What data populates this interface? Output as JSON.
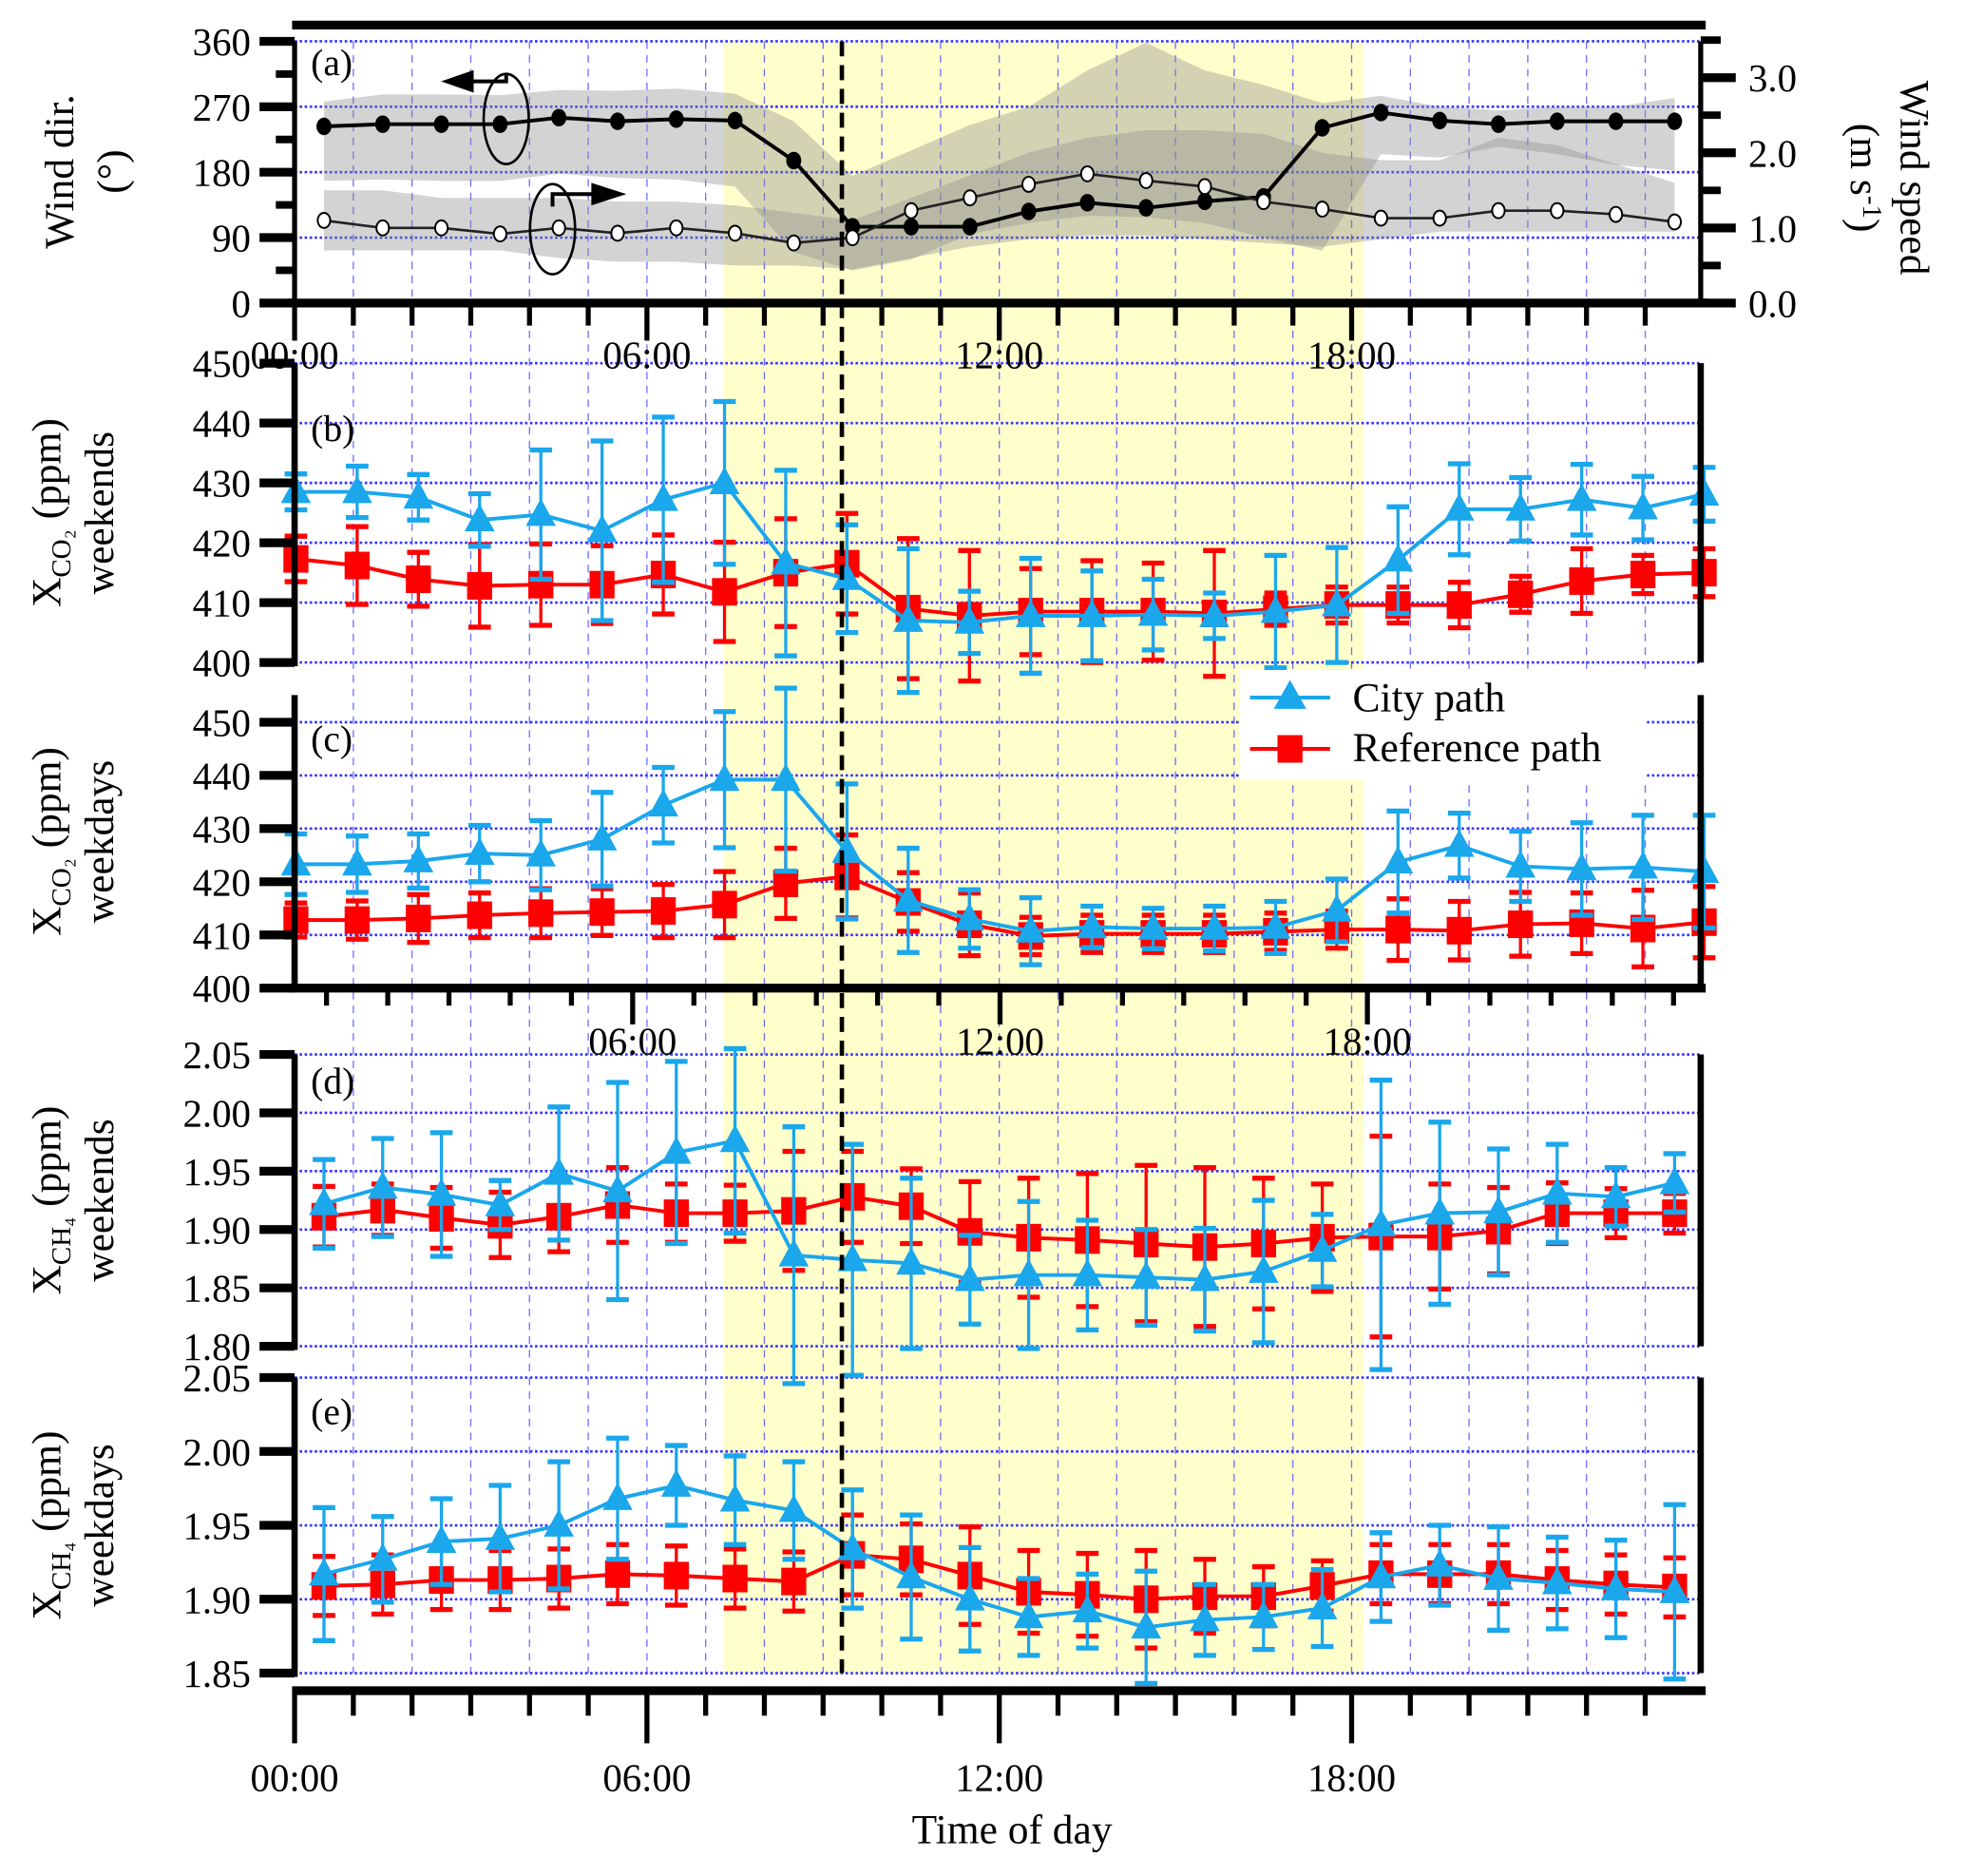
{
  "figure": {
    "x_axis_title": "Time of day",
    "x_tick_labels": [
      "00:00",
      "06:00",
      "12:00",
      "18:00"
    ],
    "mid_x_tick_labels": [
      "06:00",
      "12:00",
      "18:00"
    ],
    "highlight_band_hours": [
      7.3,
      18.2
    ],
    "dashed_line_hour": 9,
    "colors": {
      "city": "#1aa7ec",
      "reference": "#ff0000",
      "highlight": "#ffffcc",
      "grid": "#3333ff",
      "band": "#8c8c8c"
    },
    "legend": {
      "city_label": "City path",
      "reference_label": "Reference path",
      "placement": "upper-right of panel (c)"
    }
  },
  "chart_data": [
    {
      "panel": "(a)",
      "type": "line",
      "ylabel_left": "Wind dir.",
      "ylabel_left_unit": "(°)",
      "ylabel_right": "Wind speed",
      "ylabel_right_unit": "(m s",
      "ylabel_right_sup": "-1",
      "ylabel_right_close": ")",
      "ylim_left": [
        0,
        360
      ],
      "yticks_left": [
        "0",
        "90",
        "180",
        "270",
        "360"
      ],
      "ylim_right": [
        0,
        3.5
      ],
      "yticks_right": [
        "0.0",
        "1.0",
        "2.0",
        "3.0"
      ],
      "x_hours": [
        0.5,
        1.5,
        2.5,
        3.5,
        4.5,
        5.5,
        6.5,
        7.5,
        8.5,
        9.5,
        10.5,
        11.5,
        12.5,
        13.5,
        14.5,
        15.5,
        16.5,
        17.5,
        18.5,
        19.5,
        20.5,
        21.5,
        22.5,
        23.5
      ],
      "wind_direction": [
        243,
        246,
        246,
        246,
        255,
        250,
        253,
        251,
        196,
        105,
        105,
        105,
        126,
        138,
        131,
        140,
        146,
        241,
        262,
        251,
        246,
        250,
        250,
        250
      ],
      "wind_direction_band_upper": [
        277,
        287,
        287,
        286,
        293,
        292,
        295,
        288,
        250,
        175,
        210,
        245,
        270,
        320,
        358,
        320,
        300,
        275,
        285,
        270,
        265,
        270,
        270,
        282
      ],
      "wind_direction_band_lower": [
        168,
        170,
        168,
        168,
        178,
        172,
        170,
        160,
        70,
        45,
        60,
        95,
        110,
        120,
        118,
        110,
        90,
        72,
        205,
        200,
        215,
        205,
        190,
        182
      ],
      "wind_speed": [
        1.1,
        1.0,
        1.0,
        0.92,
        1.0,
        0.93,
        1.0,
        0.93,
        0.8,
        0.87,
        1.23,
        1.4,
        1.58,
        1.72,
        1.63,
        1.55,
        1.35,
        1.25,
        1.13,
        1.13,
        1.23,
        1.23,
        1.18,
        1.08
      ],
      "wind_speed_band_upper": [
        1.5,
        1.5,
        1.4,
        1.4,
        1.4,
        1.35,
        1.35,
        1.3,
        1.2,
        1.1,
        1.4,
        1.7,
        2.0,
        2.2,
        2.3,
        2.3,
        2.25,
        2.0,
        1.9,
        1.9,
        2.2,
        2.1,
        1.85,
        1.6
      ],
      "wind_speed_band_lower": [
        0.7,
        0.7,
        0.7,
        0.7,
        0.6,
        0.55,
        0.55,
        0.5,
        0.5,
        0.45,
        0.6,
        0.75,
        0.85,
        0.9,
        0.9,
        0.85,
        0.8,
        0.75,
        0.85,
        0.95,
        0.95,
        0.95,
        0.95,
        0.95
      ]
    },
    {
      "panel": "(b)",
      "type": "line",
      "ylabel_main": "X",
      "ylabel_sub": "CO₂",
      "ylabel_unit": " (ppm)",
      "ylabel_line2": "weekends",
      "ylim": [
        400,
        450
      ],
      "yticks": [
        "400",
        "410",
        "420",
        "430",
        "440",
        "450"
      ],
      "series": [
        {
          "name": "City path",
          "values": [
            428.5,
            428.5,
            427.6,
            423.8,
            424.7,
            422,
            427.2,
            430,
            416.6,
            414,
            407,
            406.7,
            407.8,
            407.8,
            408,
            407.8,
            408.5,
            409.6,
            417.1,
            425.6,
            425.6,
            427.2,
            425.8,
            428.1
          ],
          "error": [
            3,
            4.3,
            3.8,
            4.4,
            10.8,
            15,
            13.8,
            13.6,
            15.5,
            9,
            12,
            5.2,
            9.6,
            7.5,
            5.9,
            3.8,
            9.4,
            9.6,
            8.9,
            7.6,
            5.3,
            5.9,
            5.3,
            4.5
          ]
        },
        {
          "name": "Reference path",
          "values": [
            417.3,
            416.2,
            413.9,
            412.8,
            413,
            413,
            414.7,
            411.8,
            415,
            416.5,
            409,
            407.8,
            408.5,
            408.5,
            408.5,
            408.2,
            408.9,
            409.6,
            409.6,
            409.6,
            411.4,
            413.6,
            414.7,
            415
          ],
          "error": [
            3.8,
            6.5,
            4.5,
            6.9,
            6.8,
            6.5,
            6.6,
            8.3,
            9,
            8.4,
            11.7,
            10.9,
            7.2,
            8.5,
            8.1,
            10.5,
            2.7,
            3,
            3,
            3.8,
            3,
            5.4,
            3.2,
            4
          ]
        }
      ]
    },
    {
      "panel": "(c)",
      "type": "line",
      "ylabel_main": "X",
      "ylabel_sub": "CO₂",
      "ylabel_unit": " (ppm)",
      "ylabel_line2": "weekdays",
      "ylim": [
        400,
        455
      ],
      "yticks": [
        "400",
        "410",
        "420",
        "430",
        "440",
        "450"
      ],
      "series": [
        {
          "name": "City path",
          "values": [
            423.3,
            423.3,
            423.9,
            425.3,
            425,
            428,
            434.4,
            439.2,
            439.2,
            425.7,
            416.5,
            413,
            410.7,
            411.5,
            411.2,
            411.2,
            411.4,
            414.6,
            423.7,
            426.8,
            422.9,
            422.4,
            422.7,
            421.9
          ],
          "error": [
            5.7,
            5.3,
            5.1,
            5.3,
            6.5,
            8.8,
            7.1,
            12.8,
            17.2,
            12.7,
            9.8,
            5.5,
            6.3,
            3.9,
            3.8,
            4.2,
            4.9,
            5.9,
            9.6,
            6.1,
            6.6,
            8.7,
            9.8,
            10.6
          ]
        },
        {
          "name": "Reference path",
          "values": [
            412.8,
            412.8,
            413.1,
            413.7,
            414.1,
            414.3,
            414.5,
            415.7,
            419.7,
            421,
            416.2,
            412,
            409.8,
            410.2,
            410.2,
            410.2,
            410.6,
            411,
            411,
            410.8,
            412,
            412.2,
            411.2,
            412.4
          ],
          "error": [
            3.2,
            3.6,
            4.5,
            4.2,
            4.6,
            4.4,
            5,
            6.2,
            6.6,
            7.8,
            5.5,
            5.9,
            3.5,
            3.5,
            3.5,
            3.5,
            3.5,
            3.5,
            5.8,
            5.5,
            6,
            5.7,
            7.2,
            6.7
          ]
        }
      ]
    },
    {
      "panel": "(d)",
      "type": "line",
      "ylabel_main": "X",
      "ylabel_sub": "CH₄",
      "ylabel_unit": " (ppm)",
      "ylabel_line2": "weekends",
      "ylim": [
        1.8,
        2.05
      ],
      "yticks": [
        "1.80",
        "1.85",
        "1.90",
        "1.95",
        "2.00",
        "2.05"
      ],
      "series": [
        {
          "name": "City path",
          "values": [
            1.922,
            1.936,
            1.93,
            1.921,
            1.948,
            1.933,
            1.966,
            1.976,
            1.878,
            1.874,
            1.871,
            1.857,
            1.861,
            1.861,
            1.859,
            1.857,
            1.864,
            1.882,
            1.904,
            1.914,
            1.915,
            1.931,
            1.928,
            1.94
          ],
          "error": [
            0.038,
            0.042,
            0.053,
            0.021,
            0.057,
            0.093,
            0.078,
            0.079,
            0.11,
            0.099,
            0.073,
            0.038,
            0.063,
            0.047,
            0.041,
            0.044,
            0.061,
            0.031,
            0.124,
            0.078,
            0.054,
            0.042,
            0.025,
            0.025
          ]
        },
        {
          "name": "Reference path",
          "values": [
            1.911,
            1.917,
            1.91,
            1.904,
            1.911,
            1.921,
            1.914,
            1.914,
            1.916,
            1.928,
            1.92,
            1.898,
            1.893,
            1.891,
            1.888,
            1.885,
            1.888,
            1.893,
            1.894,
            1.894,
            1.899,
            1.914,
            1.914,
            1.914
          ],
          "error": [
            0.026,
            0.022,
            0.026,
            0.028,
            0.03,
            0.032,
            0.025,
            0.024,
            0.051,
            0.039,
            0.032,
            0.043,
            0.051,
            0.057,
            0.067,
            0.068,
            0.056,
            0.046,
            0.086,
            0.045,
            0.037,
            0.026,
            0.021,
            0.017
          ]
        }
      ]
    },
    {
      "panel": "(e)",
      "type": "line",
      "ylabel_main": "X",
      "ylabel_sub": "CH₄",
      "ylabel_unit": " (ppm)",
      "ylabel_line2": "weekdays",
      "ylim": [
        1.85,
        2.05
      ],
      "yticks": [
        "1.85",
        "1.90",
        "1.95",
        "2.00",
        "2.05"
      ],
      "series": [
        {
          "name": "City path",
          "values": [
            1.917,
            1.927,
            1.939,
            1.941,
            1.95,
            1.968,
            1.977,
            1.967,
            1.96,
            1.934,
            1.915,
            1.9,
            1.888,
            1.892,
            1.881,
            1.886,
            1.888,
            1.894,
            1.915,
            1.923,
            1.914,
            1.911,
            1.907,
            1.905
          ],
          "error": [
            0.045,
            0.029,
            0.029,
            0.036,
            0.043,
            0.041,
            0.027,
            0.03,
            0.033,
            0.04,
            0.042,
            0.035,
            0.026,
            0.025,
            0.038,
            0.024,
            0.022,
            0.026,
            0.03,
            0.027,
            0.035,
            0.031,
            0.033,
            0.059
          ]
        },
        {
          "name": "Reference path",
          "values": [
            1.909,
            1.91,
            1.913,
            1.913,
            1.914,
            1.917,
            1.916,
            1.914,
            1.912,
            1.93,
            1.927,
            1.916,
            1.905,
            1.903,
            1.9,
            1.902,
            1.902,
            1.909,
            1.917,
            1.917,
            1.917,
            1.913,
            1.91,
            1.908
          ],
          "error": [
            0.02,
            0.02,
            0.02,
            0.02,
            0.02,
            0.02,
            0.02,
            0.02,
            0.02,
            0.027,
            0.024,
            0.033,
            0.028,
            0.028,
            0.033,
            0.025,
            0.02,
            0.017,
            0.02,
            0.02,
            0.02,
            0.02,
            0.02,
            0.02
          ]
        }
      ]
    }
  ]
}
